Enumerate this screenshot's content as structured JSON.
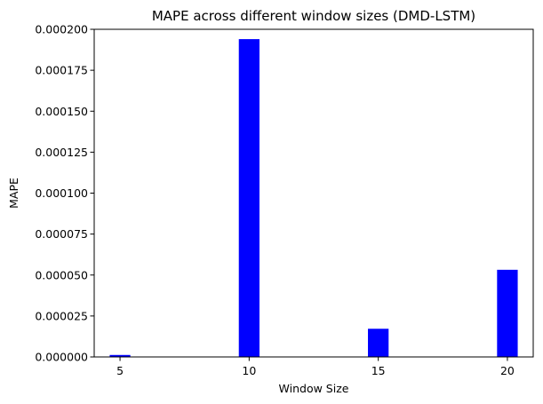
{
  "chart_data": {
    "type": "bar",
    "title": "MAPE across different window sizes (DMD-LSTM)",
    "xlabel": "Window Size",
    "ylabel": "MAPE",
    "x": [
      5,
      10,
      15,
      20
    ],
    "values": [
      1.2e-06,
      0.000194,
      1.72e-05,
      5.32e-05
    ],
    "bar_width": 0.8,
    "xlim": [
      4,
      21
    ],
    "ylim": [
      0,
      0.0002
    ],
    "xticks": [
      5,
      10,
      15,
      20
    ],
    "xtick_labels": [
      "5",
      "10",
      "15",
      "20"
    ],
    "yticks": [
      0,
      2.5e-05,
      5e-05,
      7.5e-05,
      0.0001,
      0.000125,
      0.00015,
      0.000175,
      0.0002
    ],
    "ytick_labels": [
      "0.000000",
      "0.000025",
      "0.000050",
      "0.000075",
      "0.000100",
      "0.000125",
      "0.000150",
      "0.000175",
      "0.000200"
    ],
    "bar_color": "#0000ff",
    "grid": false,
    "legend": "none"
  }
}
